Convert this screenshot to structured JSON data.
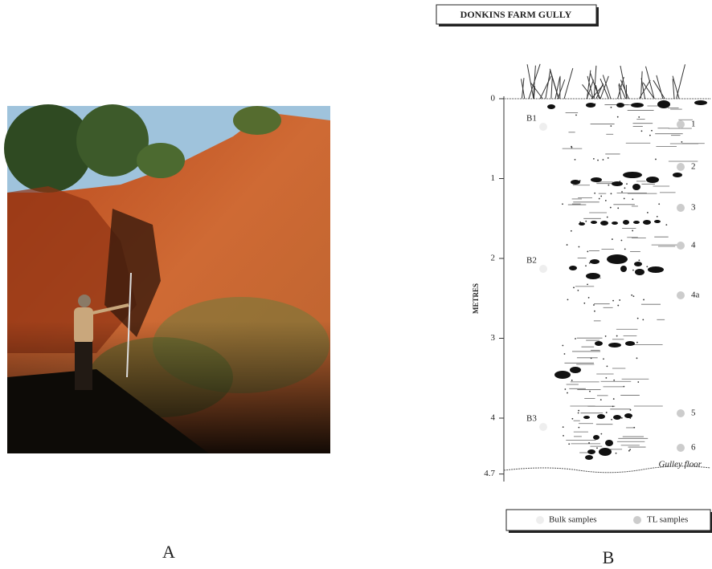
{
  "panel_a": {
    "label": "A"
  },
  "panel_b": {
    "label": "B",
    "title": "DONKINS FARM GULLY",
    "axis_label": "METRES",
    "depth_ticks": [
      0,
      1,
      2,
      3,
      4,
      4.7
    ],
    "bulk_samples": [
      "B1",
      "B2",
      "B3"
    ],
    "tl_samples": [
      "1",
      "2",
      "3",
      "4",
      "4a",
      "5",
      "6"
    ],
    "floor_label": "Gulley floor",
    "legend": [
      "Bulk samples",
      "TL samples"
    ]
  }
}
